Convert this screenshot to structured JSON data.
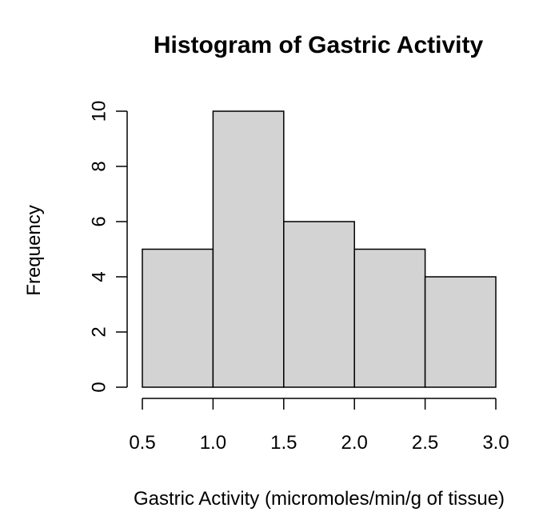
{
  "chart_data": {
    "type": "bar",
    "title": "Histogram of Gastric Activity",
    "xlabel": "Gastric Activity (micromoles/min/g of tissue)",
    "ylabel": "Frequency",
    "bins": [
      {
        "x0": 0.5,
        "x1": 1.0,
        "count": 5
      },
      {
        "x0": 1.0,
        "x1": 1.5,
        "count": 10
      },
      {
        "x0": 1.5,
        "x1": 2.0,
        "count": 6
      },
      {
        "x0": 2.0,
        "x1": 2.5,
        "count": 5
      },
      {
        "x0": 2.5,
        "x1": 3.0,
        "count": 4
      }
    ],
    "xlim": [
      0.5,
      3.0
    ],
    "ylim": [
      0,
      10
    ],
    "x_ticks": [
      "0.5",
      "1.0",
      "1.5",
      "2.0",
      "2.5",
      "3.0"
    ],
    "y_ticks": [
      "0",
      "2",
      "4",
      "6",
      "8",
      "10"
    ],
    "grid": false,
    "legend": "none",
    "colors": {
      "bar_fill": "#d3d3d3",
      "bar_stroke": "#000000",
      "axis": "#000000",
      "text": "#000000"
    }
  }
}
